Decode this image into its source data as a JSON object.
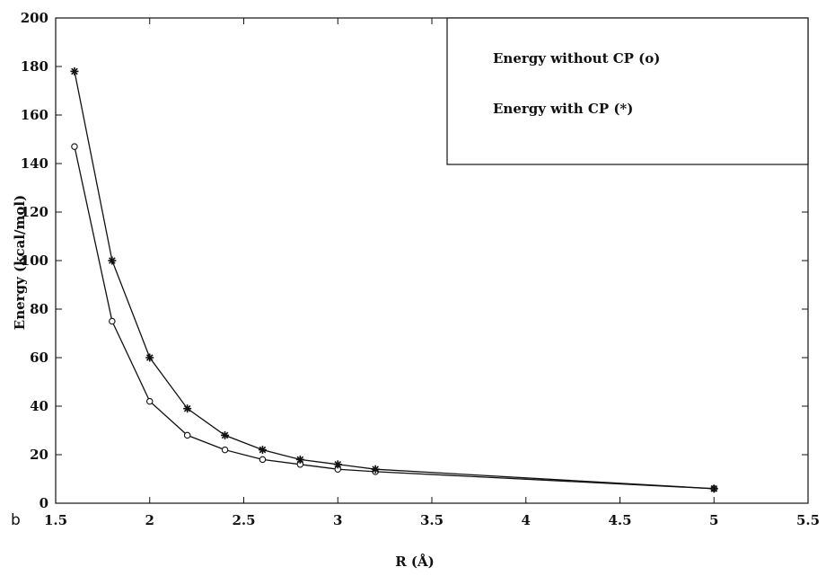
{
  "chart_data": {
    "type": "line",
    "panel_label": "b",
    "xlabel": "R (Å)",
    "ylabel": "Energy (kcal/mol)",
    "xlim": [
      1.5,
      5.5
    ],
    "ylim": [
      0,
      200
    ],
    "x_ticks": [
      1.5,
      2,
      2.5,
      3,
      3.5,
      4,
      4.5,
      5,
      5.5
    ],
    "x_tick_labels": [
      "1.5",
      "2",
      "2.5",
      "3",
      "3.5",
      "4",
      "4.5",
      "5",
      "5.5"
    ],
    "y_ticks": [
      0,
      20,
      40,
      60,
      80,
      100,
      120,
      140,
      160,
      180,
      200
    ],
    "y_tick_labels": [
      "0",
      "20",
      "40",
      "60",
      "80",
      "100",
      "120",
      "140",
      "160",
      "180",
      "200"
    ],
    "grid": false,
    "legend_position": "top-right",
    "series": [
      {
        "name": "Energy without CP (o)",
        "marker": "circle",
        "color": "#111111",
        "x": [
          1.6,
          1.8,
          2.0,
          2.2,
          2.4,
          2.6,
          2.8,
          3.0,
          3.2,
          5.0
        ],
        "y": [
          147,
          75,
          42,
          28,
          22,
          18,
          16,
          14,
          13,
          6
        ]
      },
      {
        "name": "Energy with CP (*)",
        "marker": "star",
        "color": "#111111",
        "x": [
          1.6,
          1.8,
          2.0,
          2.2,
          2.4,
          2.6,
          2.8,
          3.0,
          3.2,
          5.0
        ],
        "y": [
          178,
          100,
          60,
          39,
          28,
          22,
          18,
          16,
          14,
          6
        ]
      }
    ]
  }
}
